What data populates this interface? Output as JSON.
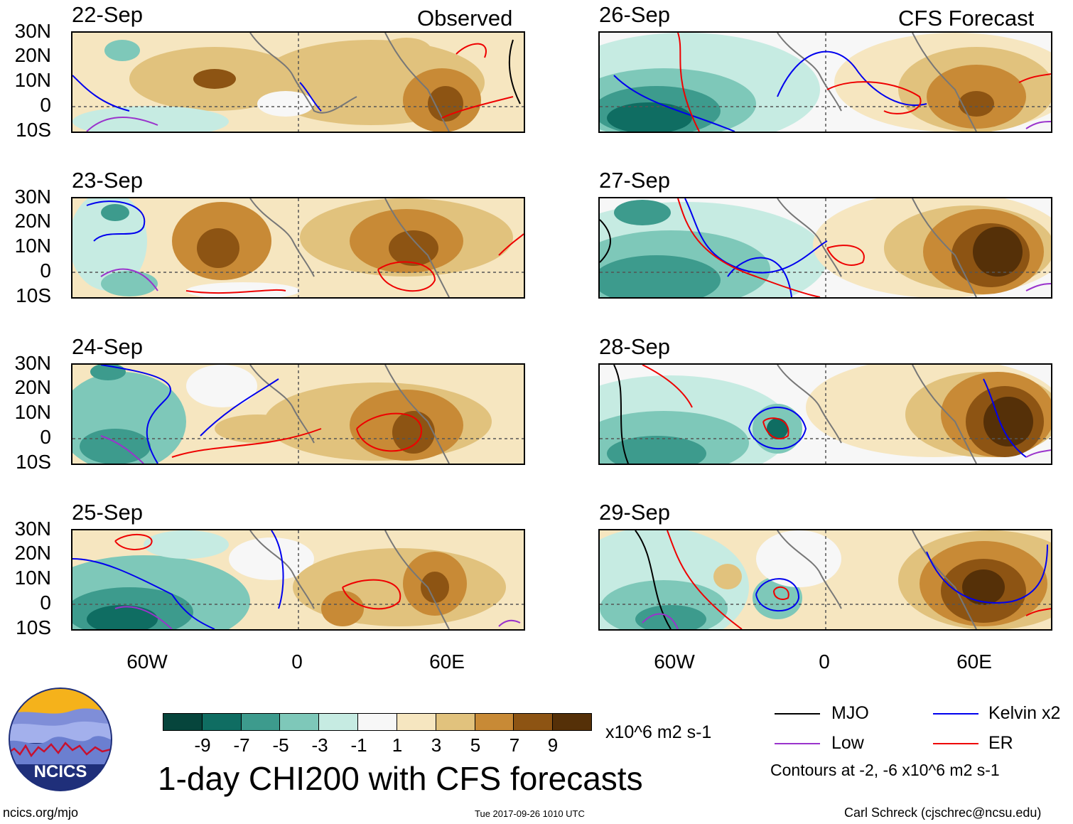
{
  "header": {
    "left_title": "Observed",
    "right_title": "CFS Forecast"
  },
  "panels": {
    "left": [
      "22-Sep",
      "23-Sep",
      "24-Sep",
      "25-Sep"
    ],
    "right": [
      "26-Sep",
      "27-Sep",
      "28-Sep",
      "29-Sep"
    ]
  },
  "axes": {
    "lat_labels": [
      "30N",
      "20N",
      "10N",
      "0",
      "10S"
    ],
    "lon_labels": [
      "60W",
      "0",
      "60E"
    ]
  },
  "colorbar": {
    "labels": [
      "-9",
      "-7",
      "-5",
      "-3",
      "-1",
      "1",
      "3",
      "5",
      "7",
      "9"
    ],
    "colors": [
      "#06453c",
      "#0f6d62",
      "#3d9b8d",
      "#7ec8b9",
      "#c6ebe2",
      "#f7f7f7",
      "#f6e6c0",
      "#e1c27d",
      "#c88a36",
      "#8d5413",
      "#553008"
    ],
    "units": "x10^6 m2 s-1"
  },
  "main_title": "1-day CHI200 with CFS forecasts",
  "legend": {
    "items": [
      {
        "label": "MJO",
        "color": "#000000"
      },
      {
        "label": "Kelvin x2",
        "color": "#0000ee"
      },
      {
        "label": "Low",
        "color": "#9a33cc"
      },
      {
        "label": "ER",
        "color": "#ee0000"
      }
    ],
    "note": "Contours at -2, -6 x10^6 m2 s-1"
  },
  "logo": {
    "text": "NCICS"
  },
  "footer": {
    "left": "ncics.org/mjo",
    "center": "Tue 2017-09-26 1010 UTC",
    "right": "Carl Schreck (cjschrec@ncsu.edu)"
  }
}
